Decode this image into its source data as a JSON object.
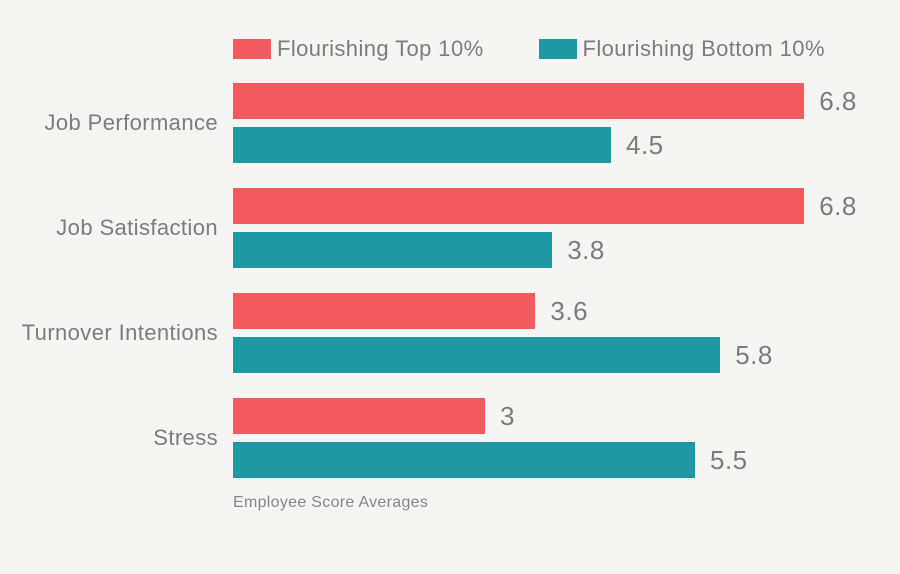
{
  "chart_data": {
    "type": "bar",
    "orientation": "horizontal",
    "title": "",
    "caption": "Employee Score Averages",
    "categories": [
      "Job Performance",
      "Job Satisfaction",
      "Turnover Intentions",
      "Stress"
    ],
    "series": [
      {
        "name": "Flourishing Top 10%",
        "color": "#F15B5F",
        "values": [
          6.8,
          6.8,
          3.6,
          3
        ],
        "labels": [
          "6.8",
          "6.8",
          "3.6",
          "3"
        ]
      },
      {
        "name": "Flourishing Bottom 10%",
        "color": "#1E99A4",
        "values": [
          4.5,
          3.8,
          5.8,
          5.5
        ],
        "labels": [
          "4.5",
          "3.8",
          "5.8",
          "5.5"
        ]
      }
    ],
    "xlim": [
      0,
      7
    ],
    "grid": false,
    "axes_visible": false,
    "legend_position": "top",
    "value_labels_shown": true
  },
  "colors": {
    "background": "#F5F5F4",
    "label_text": "#7B7C7E",
    "caption_text": "#85868A"
  }
}
